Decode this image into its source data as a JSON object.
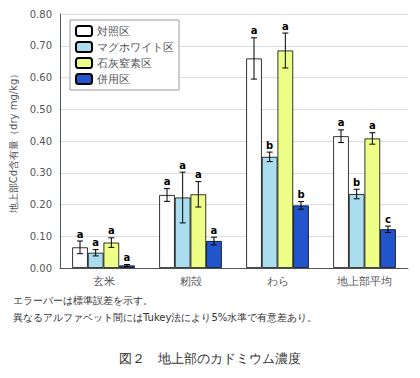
{
  "chart_data": {
    "type": "bar",
    "title": "図２　地上部のカドミウム濃度",
    "notes": [
      "エラーバーは標準誤差を示す。",
      "異なるアルファベット間にはTukey法により5%水準で有意差あり。"
    ],
    "ylabel": "地上部Cd含有量（dry mg/kg）",
    "categories": [
      "玄米",
      "籾殻",
      "わら",
      "地上部平均"
    ],
    "series": [
      {
        "name": "対照区",
        "color": "#FFFFFF",
        "values": [
          0.065,
          0.23,
          0.66,
          0.415
        ],
        "errors": [
          0.02,
          0.02,
          0.065,
          0.02
        ],
        "annotations": [
          "a",
          "a",
          "a",
          "a"
        ]
      },
      {
        "name": "マグホワイト区",
        "color": "#AADDEE",
        "values": [
          0.048,
          0.222,
          0.35,
          0.233
        ],
        "errors": [
          0.01,
          0.08,
          0.015,
          0.015
        ],
        "annotations": [
          "a",
          "a",
          "b",
          "b"
        ]
      },
      {
        "name": "石灰窒素区",
        "color": "#EEFF88",
        "values": [
          0.08,
          0.232,
          0.685,
          0.408
        ],
        "errors": [
          0.015,
          0.04,
          0.055,
          0.018
        ],
        "annotations": [
          "a",
          "a",
          "a",
          "a"
        ]
      },
      {
        "name": "併用区",
        "color": "#2255CC",
        "values": [
          0.008,
          0.085,
          0.197,
          0.122
        ],
        "errors": [
          0.003,
          0.012,
          0.012,
          0.01
        ],
        "annotations": [
          "a",
          "a",
          "b",
          "c"
        ]
      }
    ],
    "ylim": [
      0.0,
      0.8
    ],
    "yticks": [
      {
        "value": 0.0,
        "label": "0.00"
      },
      {
        "value": 0.1,
        "label": "0.10"
      },
      {
        "value": 0.2,
        "label": "0.20"
      },
      {
        "value": 0.3,
        "label": "0.30"
      },
      {
        "value": 0.4,
        "label": "0.40"
      },
      {
        "value": 0.5,
        "label": "0.50"
      },
      {
        "value": 0.6,
        "label": "0.60"
      },
      {
        "value": 0.7,
        "label": "0.70"
      },
      {
        "value": 0.8,
        "label": "0.80"
      }
    ],
    "grid": true,
    "legend": "upper left"
  }
}
